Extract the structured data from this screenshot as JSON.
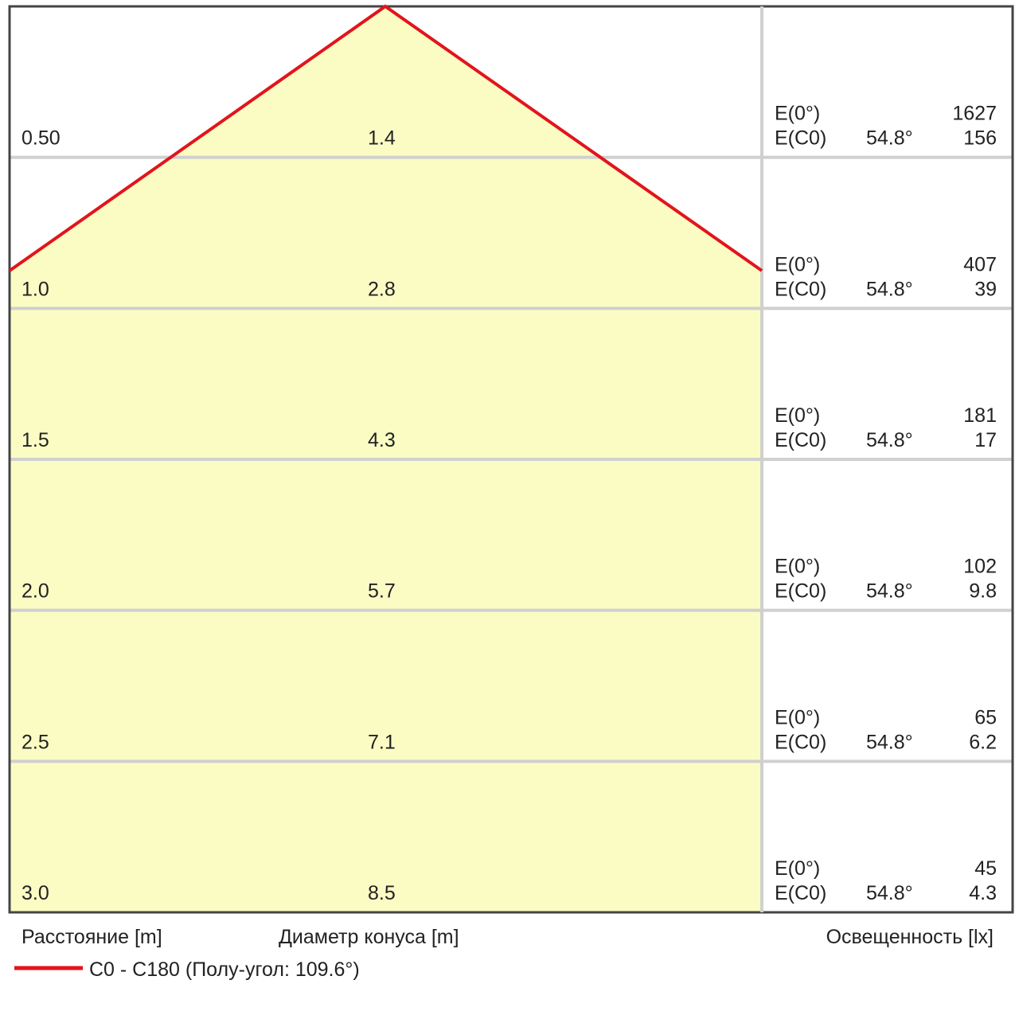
{
  "rows": [
    {
      "distance": "0.50",
      "diameter": "1.4",
      "e0_label": "E(0°)",
      "e0": "1627",
      "ec0_label": "E(C0)",
      "angle": "54.8°",
      "ec0": "156"
    },
    {
      "distance": "1.0",
      "diameter": "2.8",
      "e0_label": "E(0°)",
      "e0": "407",
      "ec0_label": "E(C0)",
      "angle": "54.8°",
      "ec0": "39"
    },
    {
      "distance": "1.5",
      "diameter": "4.3",
      "e0_label": "E(0°)",
      "e0": "181",
      "ec0_label": "E(C0)",
      "angle": "54.8°",
      "ec0": "17"
    },
    {
      "distance": "2.0",
      "diameter": "5.7",
      "e0_label": "E(0°)",
      "e0": "102",
      "ec0_label": "E(C0)",
      "angle": "54.8°",
      "ec0": "9.8"
    },
    {
      "distance": "2.5",
      "diameter": "7.1",
      "e0_label": "E(0°)",
      "e0": "65",
      "ec0_label": "E(C0)",
      "angle": "54.8°",
      "ec0": "6.2"
    },
    {
      "distance": "3.0",
      "diameter": "8.5",
      "e0_label": "E(0°)",
      "e0": "45",
      "ec0_label": "E(C0)",
      "angle": "54.8°",
      "ec0": "4.3"
    }
  ],
  "footer": {
    "distance_label": "Расстояние [m]",
    "diameter_label": "Диаметр конуса [m]",
    "illuminance_label": "Освещенность [lx]"
  },
  "legend": {
    "label": "C0 - C180 (Полу-угол: 109.6°)",
    "color": "#e3141b"
  }
}
